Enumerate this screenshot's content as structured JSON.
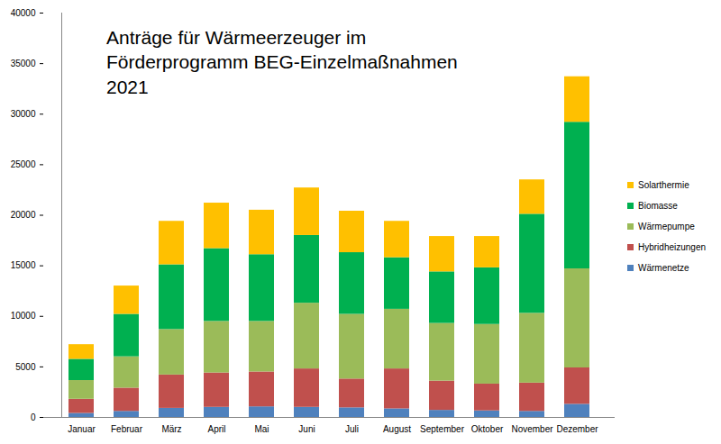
{
  "chart_data": {
    "type": "bar",
    "title": "Anträge für Wärmeerzeuger im Förderprogramm BEG-Einzelmaßnahmen 2021",
    "categories": [
      "Januar",
      "Februar",
      "März",
      "April",
      "Mai",
      "Juni",
      "Juli",
      "August",
      "September",
      "Oktober",
      "November",
      "Dezember"
    ],
    "series": [
      {
        "name": "Wärmenetze",
        "color": "#4f81bd",
        "values": [
          400,
          600,
          900,
          1000,
          1050,
          1000,
          950,
          850,
          700,
          650,
          600,
          1300
        ]
      },
      {
        "name": "Hybridheizungen",
        "color": "#c0504d",
        "values": [
          1400,
          2300,
          3300,
          3400,
          3450,
          3800,
          2850,
          3950,
          2900,
          2650,
          2800,
          3600
        ]
      },
      {
        "name": "Wärmepumpe",
        "color": "#9bbb59",
        "values": [
          1850,
          3100,
          4500,
          5100,
          5000,
          6500,
          6400,
          5900,
          5700,
          5900,
          6900,
          9800
        ]
      },
      {
        "name": "Biomasse",
        "color": "#00b050",
        "values": [
          2100,
          4200,
          6400,
          7200,
          6600,
          6700,
          6100,
          5100,
          5100,
          5600,
          9800,
          14500
        ]
      },
      {
        "name": "Solarthermie",
        "color": "#ffc000",
        "values": [
          1450,
          2800,
          4300,
          4500,
          4400,
          4700,
          4100,
          3600,
          3500,
          3100,
          3400,
          4500
        ]
      }
    ],
    "stacked": true,
    "ylim": [
      0,
      40000
    ],
    "yticks": [
      0,
      5000,
      10000,
      15000,
      20000,
      25000,
      30000,
      35000,
      40000
    ],
    "grid": false,
    "legend": "right"
  }
}
